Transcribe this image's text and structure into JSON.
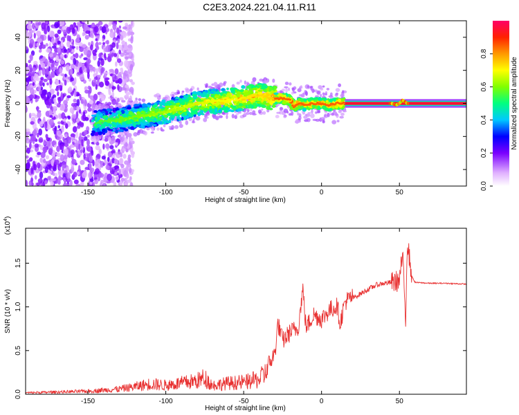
{
  "title": "C2E3.2024.221.04.11.R11",
  "chart_data": [
    {
      "type": "heatmap",
      "xlabel": "Height of straight line (km)",
      "ylabel": "Frequency (Hz)",
      "xlim": [
        -190,
        93
      ],
      "ylim": [
        -50,
        50
      ],
      "xticks": [
        -150,
        -100,
        -50,
        0,
        50
      ],
      "yticks": [
        -40,
        -20,
        0,
        20,
        40
      ],
      "ridge": {
        "x": [
          -147,
          -140,
          -130,
          -120,
          -110,
          -100,
          -90,
          -80,
          -70,
          -60,
          -50,
          -40,
          -35,
          -30,
          -25,
          -20,
          -18,
          -15,
          -10,
          -5,
          0,
          5,
          10,
          15,
          45,
          48,
          50,
          52,
          55,
          93
        ],
        "y": [
          -12,
          -11,
          -10,
          -8,
          -7,
          -5,
          -3,
          0,
          1,
          2,
          3,
          5,
          4,
          3,
          3,
          2,
          -2,
          0,
          -1,
          0,
          0,
          -1,
          0,
          0,
          0,
          -1,
          0,
          2,
          0,
          0
        ]
      },
      "noise_region": [
        -190,
        -127
      ]
    },
    {
      "type": "colorbar",
      "label": "Normalized spectral amplitude",
      "range": [
        0,
        1
      ],
      "ticks": [
        0.0,
        0.2,
        0.4,
        0.6,
        0.8
      ]
    },
    {
      "type": "line",
      "ylabel": "SNR (10 * v/v)",
      "yunit": "(x10",
      "yunit_exp": "4",
      "yunit_close": ")",
      "xlabel": "Height of straight line (km)",
      "xlim": [
        -190,
        93
      ],
      "ylim": [
        0,
        1.9
      ],
      "xticks": [
        -150,
        -100,
        -50,
        0,
        50
      ],
      "yticks": [
        0.0,
        0.5,
        1.0,
        1.5
      ],
      "color": "#e83030",
      "x": [
        -190,
        -170,
        -150,
        -130,
        -120,
        -110,
        -100,
        -90,
        -80,
        -75,
        -70,
        -60,
        -50,
        -40,
        -35,
        -30,
        -28,
        -25,
        -20,
        -15,
        -12,
        -10,
        -5,
        0,
        5,
        10,
        12,
        15,
        20,
        25,
        30,
        35,
        40,
        45,
        50,
        52,
        54,
        55,
        58,
        60,
        70,
        80,
        93
      ],
      "y": [
        0.02,
        0.03,
        0.04,
        0.07,
        0.1,
        0.14,
        0.12,
        0.15,
        0.18,
        0.22,
        0.12,
        0.15,
        0.16,
        0.2,
        0.3,
        0.45,
        0.8,
        0.6,
        0.7,
        0.75,
        1.2,
        0.75,
        0.9,
        0.85,
        0.95,
        1.0,
        0.8,
        1.05,
        1.1,
        1.15,
        1.2,
        1.25,
        1.27,
        1.28,
        1.3,
        1.6,
        0.85,
        1.75,
        1.35,
        1.28,
        1.27,
        1.27,
        1.26
      ]
    }
  ]
}
